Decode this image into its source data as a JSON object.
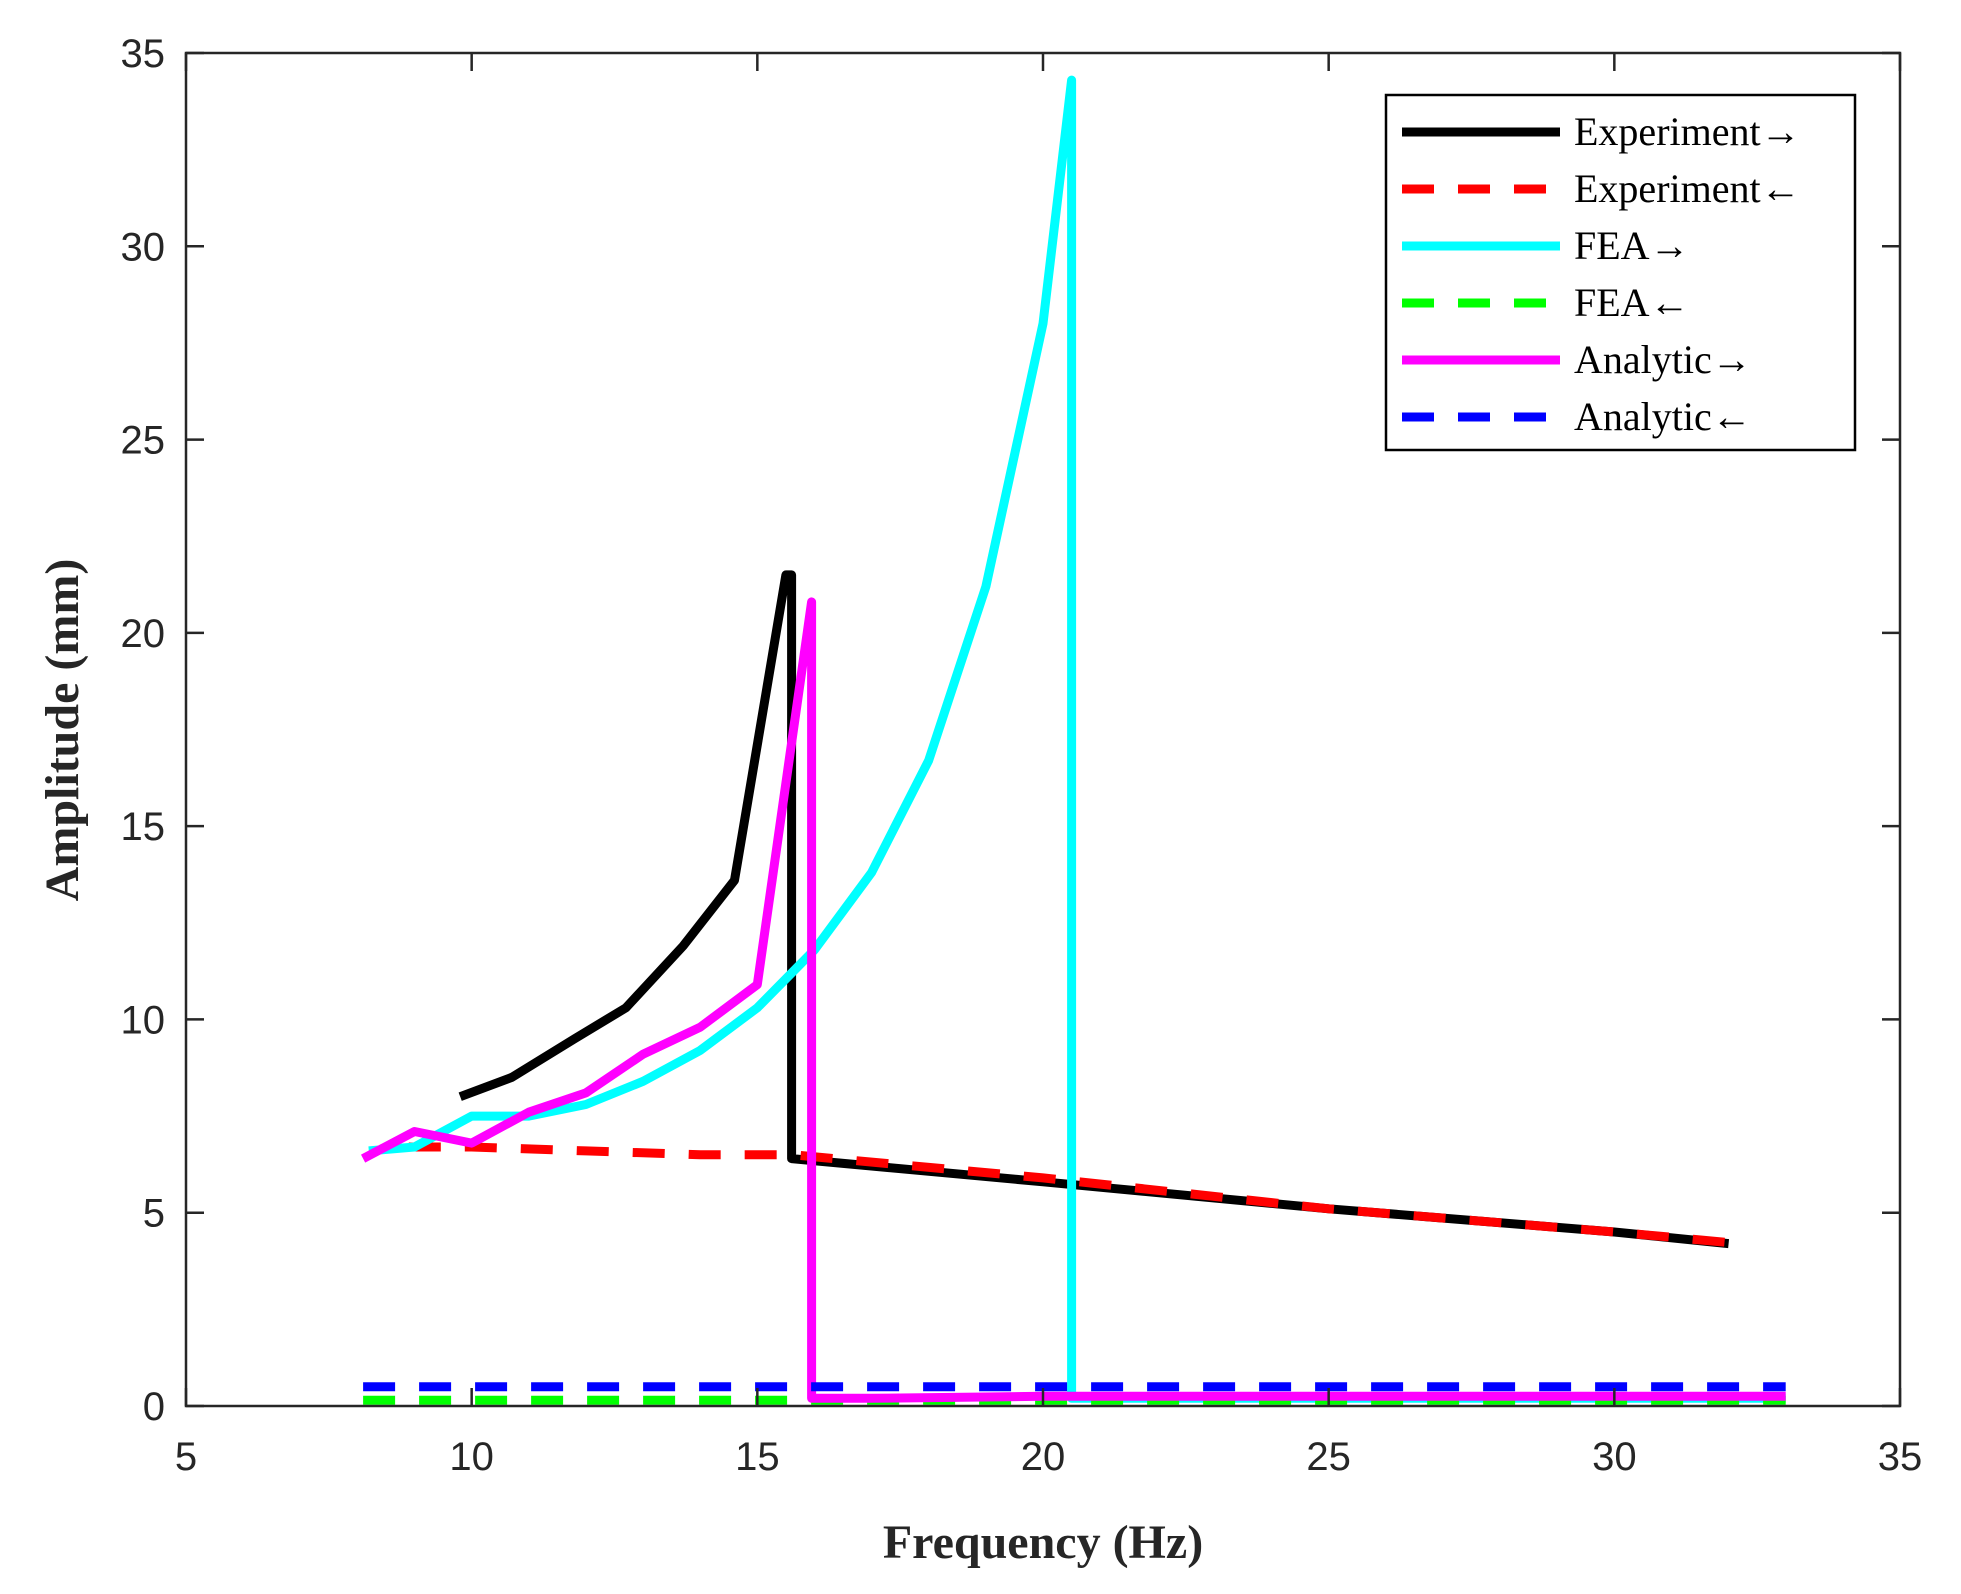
{
  "chart_data": {
    "type": "line",
    "title": "",
    "xlabel": "Frequency (Hz)",
    "ylabel": "Amplitude (mm)",
    "xlim": [
      5,
      35
    ],
    "ylim": [
      0,
      35
    ],
    "xticks": [
      "5",
      "10",
      "15",
      "20",
      "25",
      "30",
      "35"
    ],
    "yticks": [
      "0",
      "5",
      "10",
      "15",
      "20",
      "25",
      "30",
      "35"
    ],
    "grid": false,
    "legend_position": "top-right",
    "series": [
      {
        "name": "Experiment→",
        "color": "#000000",
        "dash": "solid",
        "x": [
          9.8,
          10.7,
          11.8,
          12.7,
          13.7,
          14.6,
          15.5,
          15.6,
          15.6,
          20,
          25,
          30,
          32
        ],
        "y": [
          8.0,
          8.5,
          9.5,
          10.3,
          11.9,
          13.6,
          21.5,
          21.5,
          6.4,
          5.8,
          5.1,
          4.5,
          4.2
        ]
      },
      {
        "name": "Experiment←",
        "color": "#ff0000",
        "dash": "dashed",
        "x": [
          8.9,
          10,
          12,
          14,
          15.6,
          20,
          25,
          30,
          32.2
        ],
        "y": [
          6.7,
          6.7,
          6.6,
          6.5,
          6.5,
          5.9,
          5.1,
          4.5,
          4.2
        ]
      },
      {
        "name": "FEA→",
        "color": "#00ffff",
        "dash": "solid",
        "x": [
          8.2,
          9,
          10,
          11,
          12,
          13,
          14,
          15,
          16,
          17,
          18,
          19,
          20,
          20.5,
          20.5,
          21,
          25,
          33
        ],
        "y": [
          6.6,
          6.7,
          7.5,
          7.5,
          7.8,
          8.4,
          9.2,
          10.3,
          11.8,
          13.8,
          16.7,
          21.2,
          28,
          34.3,
          0.2,
          0.2,
          0.2,
          0.2
        ]
      },
      {
        "name": "FEA←",
        "color": "#00ff00",
        "dash": "dashed",
        "x": [
          8.1,
          33
        ],
        "y": [
          0.15,
          0.15
        ]
      },
      {
        "name": "Analytic→",
        "color": "#ff00ff",
        "dash": "solid",
        "x": [
          8.1,
          9,
          10,
          11,
          12,
          13,
          14,
          15,
          15.95,
          15.95,
          17,
          20,
          25,
          33
        ],
        "y": [
          6.4,
          7.1,
          6.8,
          7.6,
          8.1,
          9.1,
          9.8,
          10.9,
          20.8,
          0.2,
          0.2,
          0.25,
          0.25,
          0.25
        ]
      },
      {
        "name": "Analytic←",
        "color": "#0000ff",
        "dash": "dashed",
        "x": [
          8.1,
          33
        ],
        "y": [
          0.5,
          0.5
        ]
      }
    ]
  }
}
